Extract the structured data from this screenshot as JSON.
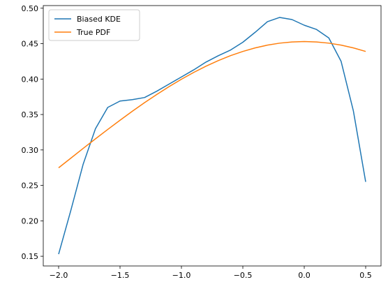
{
  "chart_data": {
    "type": "line",
    "x": [
      -2.0,
      -1.9,
      -1.8,
      -1.7,
      -1.6,
      -1.5,
      -1.4,
      -1.3,
      -1.2,
      -1.1,
      -1.0,
      -0.9,
      -0.8,
      -0.7,
      -0.6,
      -0.5,
      -0.4,
      -0.3,
      -0.2,
      -0.1,
      0.0,
      0.1,
      0.2,
      0.3,
      0.4,
      0.5
    ],
    "series": [
      {
        "name": "Biased KDE",
        "color": "#1f77b4",
        "values": [
          0.153,
          0.215,
          0.28,
          0.33,
          0.36,
          0.369,
          0.371,
          0.374,
          0.383,
          0.393,
          0.403,
          0.413,
          0.424,
          0.433,
          0.441,
          0.452,
          0.466,
          0.481,
          0.487,
          0.484,
          0.476,
          0.47,
          0.458,
          0.425,
          0.355,
          0.255
        ]
      },
      {
        "name": "True PDF",
        "color": "#ff7f0e",
        "values": [
          0.2748,
          0.2885,
          0.3022,
          0.3157,
          0.3289,
          0.3419,
          0.3546,
          0.3668,
          0.3784,
          0.3894,
          0.3998,
          0.4094,
          0.4182,
          0.4261,
          0.4331,
          0.439,
          0.444,
          0.4479,
          0.4507,
          0.4524,
          0.453,
          0.4524,
          0.4507,
          0.4479,
          0.444,
          0.439
        ]
      }
    ],
    "xlim": [
      -2.125,
      0.625
    ],
    "ylim": [
      0.1363,
      0.5037
    ],
    "xticks": [
      {
        "value": -2.0,
        "label": "−2.0"
      },
      {
        "value": -1.5,
        "label": "−1.5"
      },
      {
        "value": -1.0,
        "label": "−1.0"
      },
      {
        "value": -0.5,
        "label": "−0.5"
      },
      {
        "value": 0.0,
        "label": "0.0"
      },
      {
        "value": 0.5,
        "label": "0.5"
      }
    ],
    "yticks": [
      {
        "value": 0.15,
        "label": "0.15"
      },
      {
        "value": 0.2,
        "label": "0.20"
      },
      {
        "value": 0.25,
        "label": "0.25"
      },
      {
        "value": 0.3,
        "label": "0.30"
      },
      {
        "value": 0.35,
        "label": "0.35"
      },
      {
        "value": 0.4,
        "label": "0.40"
      },
      {
        "value": 0.45,
        "label": "0.45"
      },
      {
        "value": 0.5,
        "label": "0.50"
      }
    ],
    "legend": "upper left",
    "grid": false
  }
}
